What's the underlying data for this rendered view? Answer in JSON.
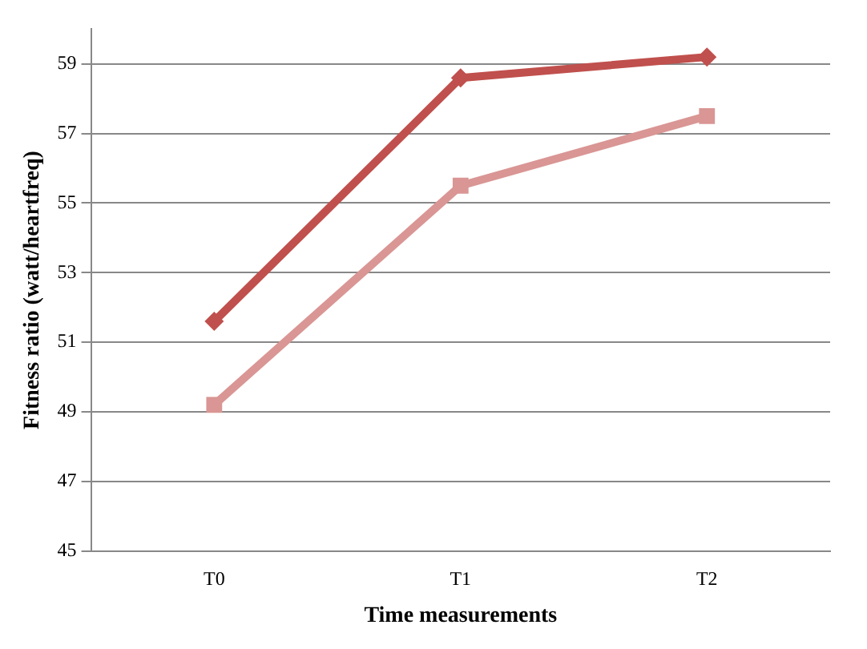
{
  "chart_data": {
    "type": "line",
    "xlabel": "Time measurements",
    "ylabel": "Fitness ratio (watt/heartfreq)",
    "categories": [
      "T0",
      "T1",
      "T2"
    ],
    "series": [
      {
        "color": "#c0504d",
        "marker": "diamond",
        "values": [
          51.6,
          58.6,
          59.2
        ]
      },
      {
        "color": "#d99694",
        "marker": "square",
        "values": [
          49.2,
          55.5,
          57.5
        ]
      }
    ],
    "ylim": [
      45,
      60
    ],
    "yticks": [
      45,
      47,
      49,
      51,
      53,
      55,
      57,
      59
    ],
    "grid": "y",
    "legend": false,
    "line_style": "solid"
  }
}
